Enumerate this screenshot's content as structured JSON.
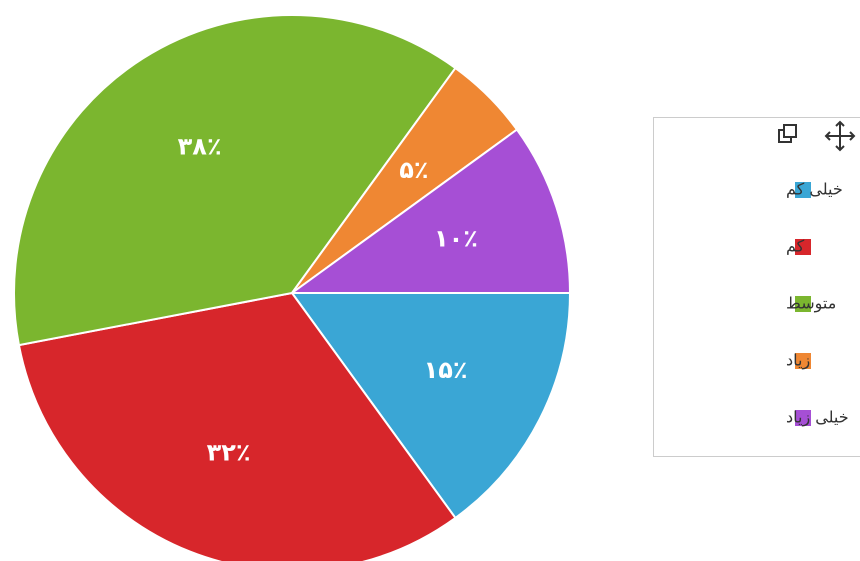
{
  "chart_data": {
    "type": "pie",
    "categories": [
      "خیلی کم",
      "کم",
      "متوسط",
      "زیاد",
      "خیلی زیاد"
    ],
    "values": [
      15,
      32,
      38,
      5,
      10
    ],
    "value_labels": [
      "۱۵٪",
      "۳۲٪",
      "۳۸٪",
      "۵٪",
      "۱۰٪"
    ],
    "colors": [
      "#3aa6d5",
      "#d7262b",
      "#7bb62f",
      "#ef8733",
      "#a64fd5"
    ]
  }
}
